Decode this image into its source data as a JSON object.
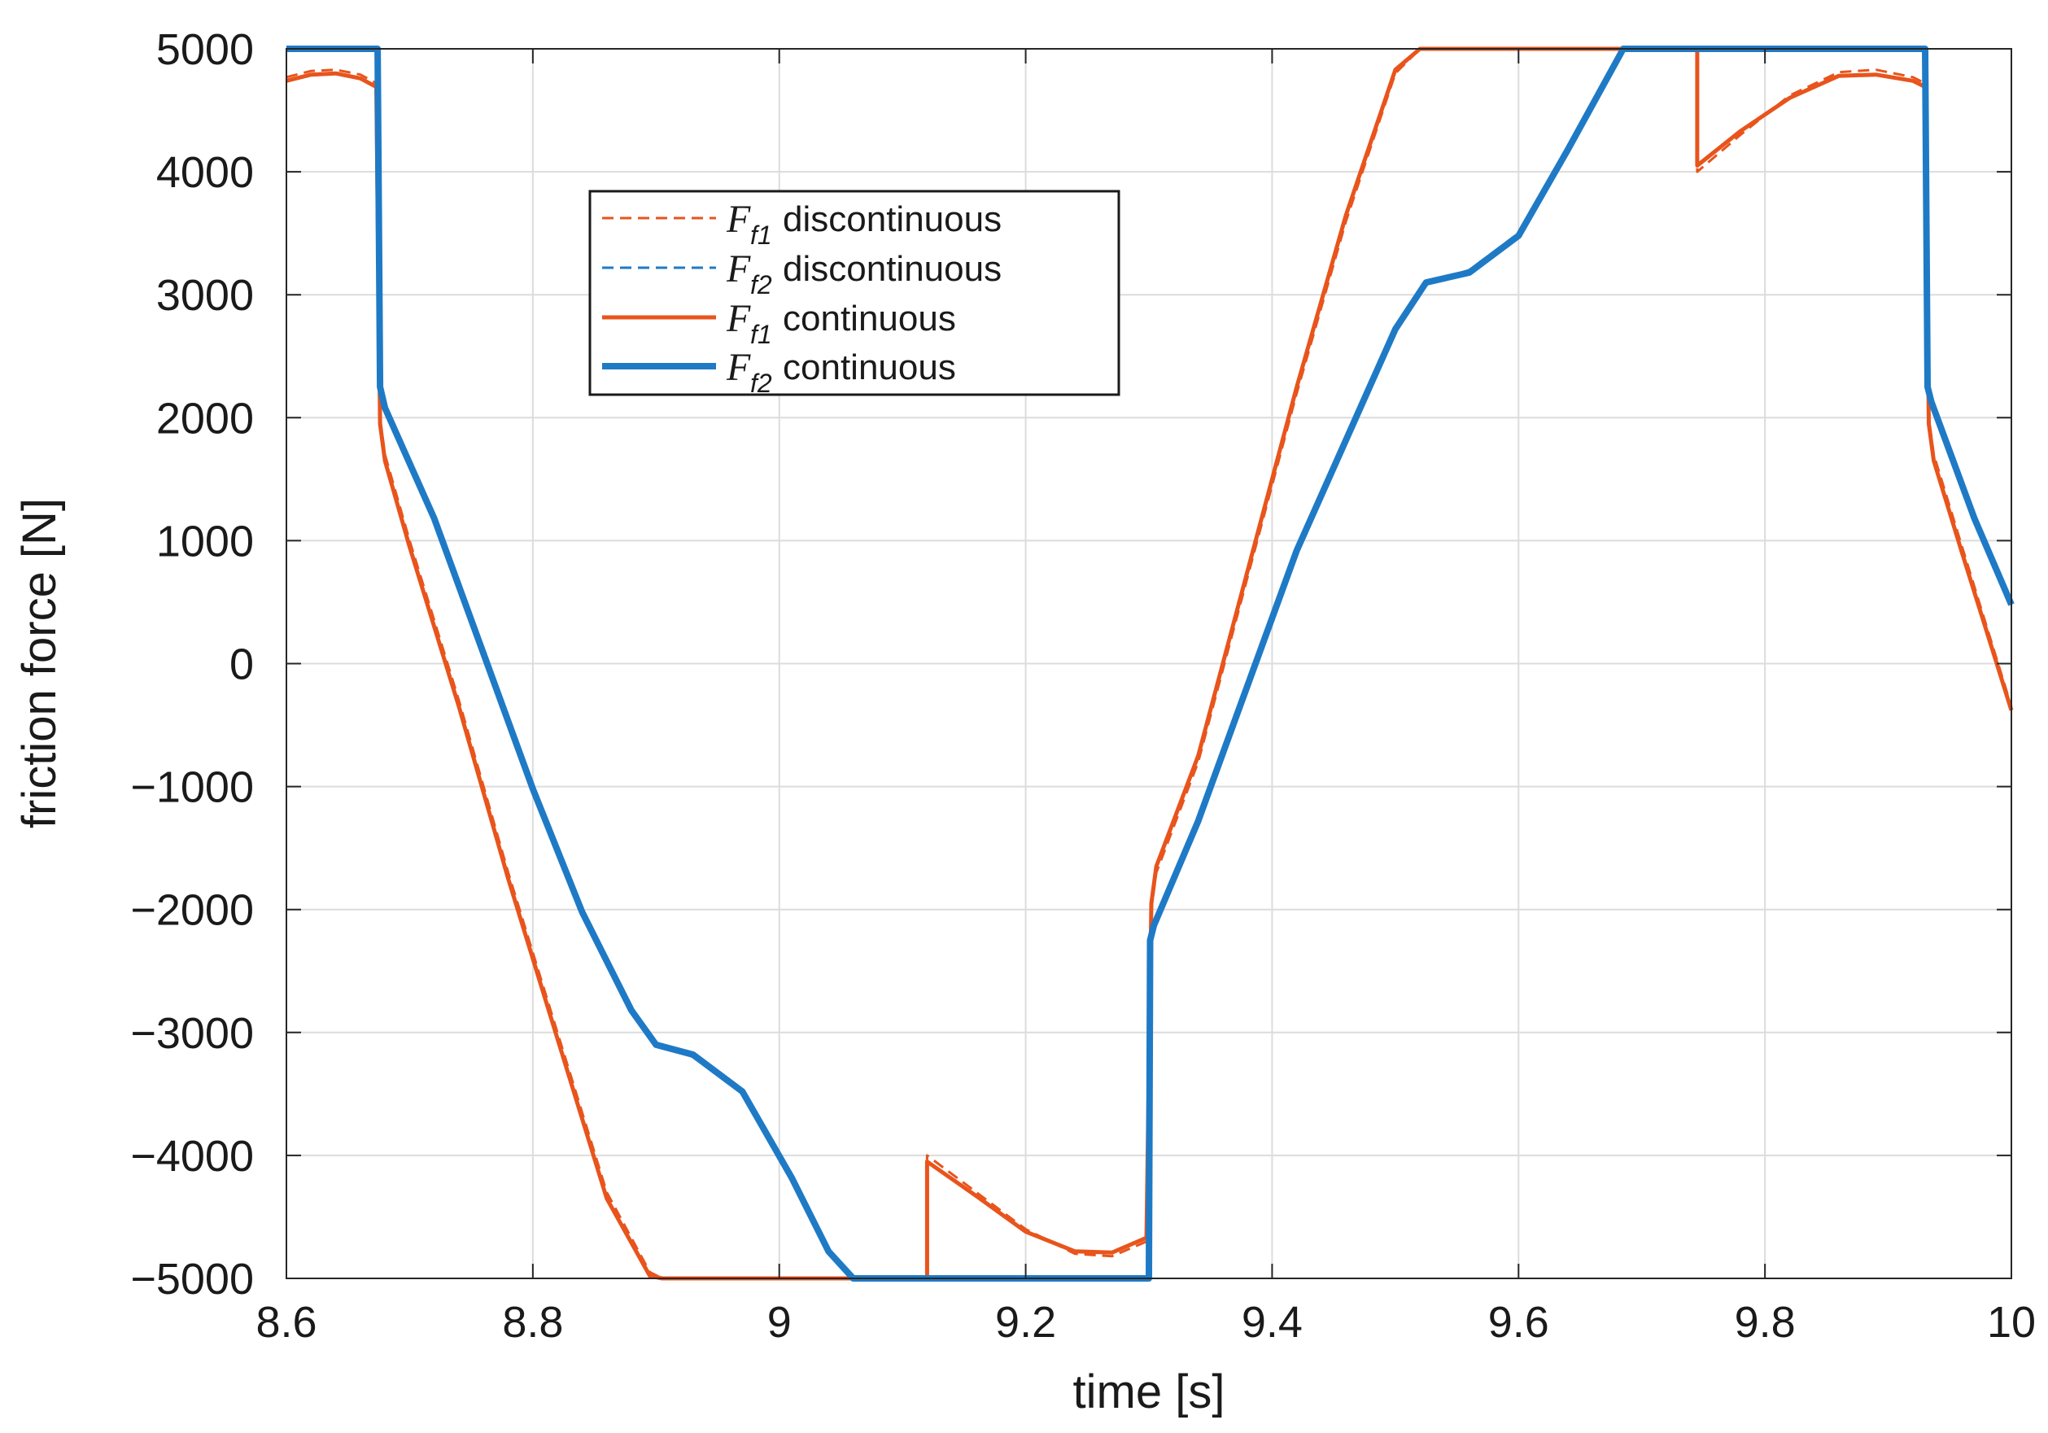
{
  "chart_data": {
    "type": "line",
    "title": "",
    "xlabel": "time [s]",
    "ylabel": "friction force [N]",
    "xlim": [
      8.6,
      10.0
    ],
    "ylim": [
      -5000,
      5000
    ],
    "grid": true,
    "legend_position": "upper-left-inside",
    "x_ticks": [
      8.6,
      8.8,
      9.0,
      9.2,
      9.4,
      9.6,
      9.8,
      10.0
    ],
    "x_tick_labels": [
      "8.6",
      "8.8",
      "9",
      "9.2",
      "9.4",
      "9.6",
      "9.8",
      "10"
    ],
    "y_ticks": [
      5000,
      4000,
      3000,
      2000,
      1000,
      0,
      -1000,
      -2000,
      -3000,
      -4000,
      -5000
    ],
    "y_tick_labels": [
      "5000",
      "4000",
      "3000",
      "2000",
      "1000",
      "0",
      "−1000",
      "−2000",
      "−3000",
      "−4000",
      "−5000"
    ],
    "series": [
      {
        "name": "F_f1 discontinuous",
        "symbol": "F",
        "subscript": "f1",
        "label": "discontinuous",
        "color": "#e8541c",
        "dash": true,
        "width": 3,
        "x": [
          8.6,
          8.62,
          8.64,
          8.66,
          8.673,
          8.676,
          8.68,
          8.7,
          8.74,
          8.78,
          8.82,
          8.86,
          8.895,
          8.905,
          9.12,
          9.12,
          9.16,
          9.2,
          9.24,
          9.27,
          9.298,
          9.302,
          9.306,
          9.34,
          9.38,
          9.42,
          9.46,
          9.5,
          9.52,
          9.53,
          9.745,
          9.745,
          9.78,
          9.82,
          9.86,
          9.89,
          9.92,
          9.93,
          9.933,
          9.937,
          9.96,
          10.0
        ],
        "y": [
          4770,
          4820,
          4830,
          4790,
          4720,
          2000,
          1700,
          1000,
          -300,
          -1700,
          -3000,
          -4300,
          -4950,
          -5000,
          -5000,
          -4000,
          -4300,
          -4600,
          -4800,
          -4820,
          -4700,
          -2000,
          -1700,
          -800,
          700,
          2200,
          3600,
          4800,
          5000,
          5000,
          5000,
          4000,
          4300,
          4620,
          4810,
          4830,
          4770,
          4720,
          2000,
          1700,
          950,
          -350
        ]
      },
      {
        "name": "F_f2 discontinuous",
        "symbol": "F",
        "subscript": "f2",
        "label": "discontinuous",
        "color": "#1f7ac6",
        "dash": true,
        "width": 3,
        "x": [
          8.6,
          8.674,
          8.676,
          8.68,
          8.72,
          8.76,
          8.8,
          8.84,
          8.88,
          8.9,
          8.93,
          8.97,
          9.01,
          9.04,
          9.06,
          9.3,
          9.301,
          9.304,
          9.34,
          9.38,
          9.42,
          9.46,
          9.5,
          9.525,
          9.56,
          9.6,
          9.64,
          9.685,
          9.93,
          9.932,
          9.935,
          9.97,
          10.0
        ],
        "y": [
          5000,
          5000,
          2300,
          2100,
          1200,
          100,
          -1000,
          -2000,
          -2800,
          -3100,
          -3200,
          -3500,
          -4200,
          -4800,
          -5000,
          -5000,
          -2300,
          -2150,
          -1300,
          -200,
          900,
          1800,
          2700,
          3100,
          3200,
          3500,
          4200,
          5000,
          5000,
          2300,
          2150,
          1200,
          500
        ]
      },
      {
        "name": "F_f1 continuous",
        "symbol": "F",
        "subscript": "f1",
        "label": "continuous",
        "color": "#e8541c",
        "dash": false,
        "width": 5,
        "x": [
          8.6,
          8.62,
          8.64,
          8.66,
          8.673,
          8.676,
          8.68,
          8.7,
          8.74,
          8.78,
          8.82,
          8.86,
          8.895,
          8.905,
          9.12,
          9.12,
          9.16,
          9.2,
          9.24,
          9.27,
          9.298,
          9.302,
          9.306,
          9.34,
          9.38,
          9.42,
          9.46,
          9.5,
          9.52,
          9.53,
          9.745,
          9.745,
          9.78,
          9.82,
          9.86,
          9.89,
          9.92,
          9.93,
          9.933,
          9.937,
          9.96,
          10.0
        ],
        "y": [
          4740,
          4790,
          4800,
          4760,
          4690,
          1950,
          1650,
          950,
          -350,
          -1750,
          -3050,
          -4350,
          -4980,
          -5000,
          -5000,
          -4050,
          -4330,
          -4620,
          -4780,
          -4790,
          -4670,
          -1950,
          -1650,
          -750,
          750,
          2250,
          3650,
          4830,
          5000,
          5000,
          5000,
          4050,
          4330,
          4600,
          4780,
          4790,
          4740,
          4690,
          1950,
          1650,
          900,
          -380
        ]
      },
      {
        "name": "F_f2 continuous",
        "symbol": "F",
        "subscript": "f2",
        "label": "continuous",
        "color": "#1f7ac6",
        "dash": false,
        "width": 8,
        "x": [
          8.6,
          8.674,
          8.676,
          8.68,
          8.72,
          8.76,
          8.8,
          8.84,
          8.88,
          8.9,
          8.93,
          8.97,
          9.01,
          9.04,
          9.06,
          9.3,
          9.301,
          9.304,
          9.34,
          9.38,
          9.42,
          9.46,
          9.5,
          9.525,
          9.56,
          9.6,
          9.64,
          9.685,
          9.93,
          9.932,
          9.935,
          9.97,
          10.0
        ],
        "y": [
          5000,
          5000,
          2250,
          2080,
          1180,
          80,
          -1020,
          -2020,
          -2820,
          -3100,
          -3180,
          -3480,
          -4180,
          -4780,
          -5000,
          -5000,
          -2250,
          -2130,
          -1280,
          -180,
          920,
          1820,
          2720,
          3100,
          3180,
          3480,
          4180,
          5000,
          5000,
          2250,
          2130,
          1180,
          480
        ]
      }
    ]
  }
}
